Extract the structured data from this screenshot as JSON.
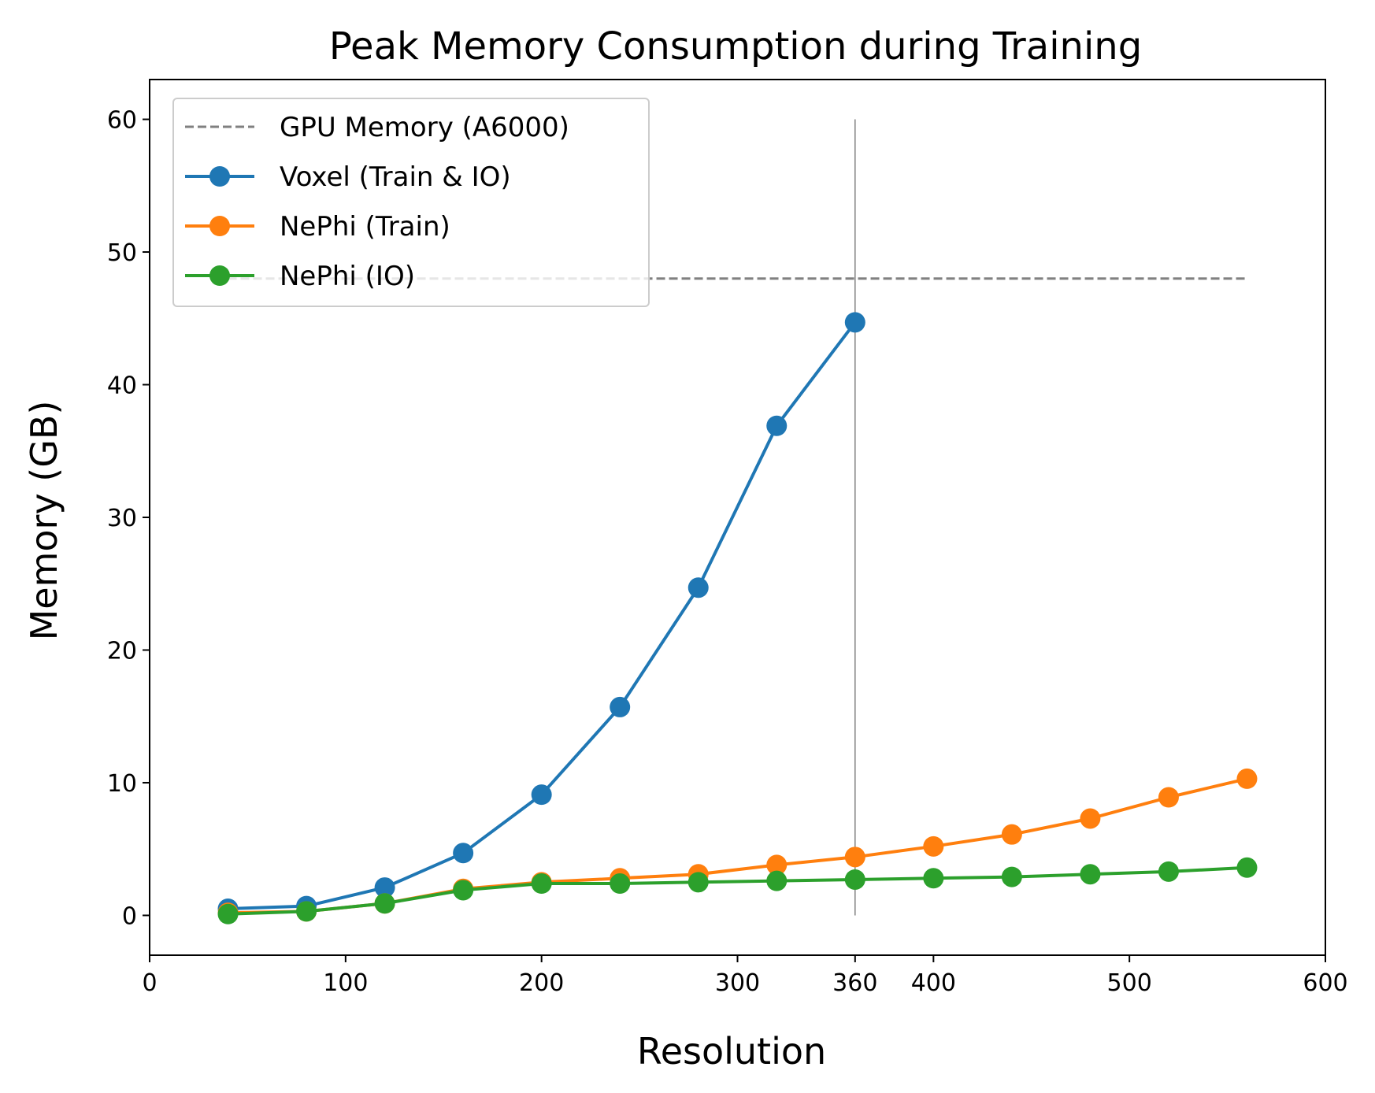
{
  "chart_data": {
    "type": "line",
    "title": "Peak Memory Consumption during Training",
    "xlabel": "Resolution",
    "ylabel": "Memory (GB)",
    "xlim": [
      0,
      600
    ],
    "ylim": [
      -3,
      63
    ],
    "xticks": [
      0,
      100,
      200,
      300,
      360,
      400,
      500,
      600
    ],
    "yticks": [
      0,
      10,
      20,
      30,
      40,
      50,
      60
    ],
    "grid": false,
    "legend_position": "upper-left",
    "reference_lines": [
      {
        "name": "GPU Memory (A6000)",
        "orientation": "horizontal",
        "y": 48,
        "x_range": [
          40,
          560
        ],
        "style": "dashed",
        "color": "#808080"
      },
      {
        "orientation": "vertical",
        "x": 360,
        "y_range": [
          0,
          60
        ],
        "style": "solid",
        "color": "#808080"
      }
    ],
    "series": [
      {
        "name": "Voxel (Train & IO)",
        "color": "#1f77b4",
        "x": [
          40,
          80,
          120,
          160,
          200,
          240,
          280,
          320,
          360
        ],
        "y": [
          0.5,
          0.7,
          2.1,
          4.7,
          9.1,
          15.7,
          24.7,
          36.9,
          44.7
        ]
      },
      {
        "name": "NePhi (Train)",
        "color": "#ff7f0e",
        "x": [
          40,
          80,
          120,
          160,
          200,
          240,
          280,
          320,
          360,
          400,
          440,
          480,
          520,
          560
        ],
        "y": [
          0.2,
          0.3,
          0.9,
          2.0,
          2.5,
          2.8,
          3.1,
          3.8,
          4.4,
          5.2,
          6.1,
          7.3,
          8.9,
          10.3
        ]
      },
      {
        "name": "NePhi (IO)",
        "color": "#2ca02c",
        "x": [
          40,
          80,
          120,
          160,
          200,
          240,
          280,
          320,
          360,
          400,
          440,
          480,
          520,
          560
        ],
        "y": [
          0.1,
          0.3,
          0.9,
          1.9,
          2.4,
          2.4,
          2.5,
          2.6,
          2.7,
          2.8,
          2.9,
          3.1,
          3.3,
          3.6
        ]
      }
    ]
  }
}
